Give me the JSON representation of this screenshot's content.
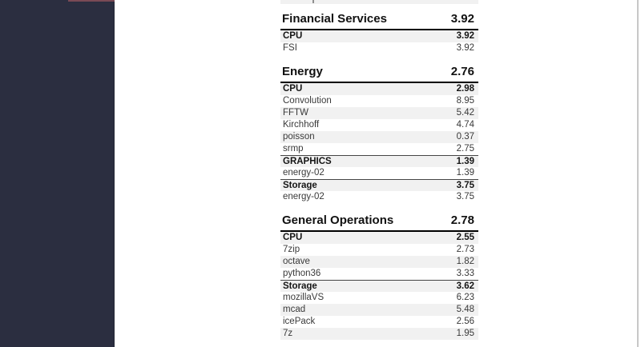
{
  "colors": {
    "sidebar_bg": "#2b2e40",
    "sidebar_accent": "#7a4a55",
    "row_shade": "#f1f1f1",
    "heading_rule": "#000000",
    "group_rule": "#454545",
    "page_edge": "#c7c7c7"
  },
  "report": {
    "top_cutoff_row": {
      "visible": true
    },
    "sections": [
      {
        "title": "Financial Services",
        "score": "3.92",
        "rows": [
          {
            "label": "CPU",
            "value": "3.92",
            "bold": true,
            "rule": false
          },
          {
            "label": "FSI",
            "value": "3.92",
            "bold": false,
            "rule": false
          }
        ]
      },
      {
        "title": "Energy",
        "score": "2.76",
        "rows": [
          {
            "label": "CPU",
            "value": "2.98",
            "bold": true,
            "rule": false
          },
          {
            "label": "Convolution",
            "value": "8.95",
            "bold": false,
            "rule": false
          },
          {
            "label": "FFTW",
            "value": "5.42",
            "bold": false,
            "rule": false
          },
          {
            "label": "Kirchhoff",
            "value": "4.74",
            "bold": false,
            "rule": false
          },
          {
            "label": "poisson",
            "value": "0.37",
            "bold": false,
            "rule": false
          },
          {
            "label": "srmp",
            "value": "2.75",
            "bold": false,
            "rule": false
          },
          {
            "label": "GRAPHICS",
            "value": "1.39",
            "bold": true,
            "rule": true
          },
          {
            "label": "energy-02",
            "value": "1.39",
            "bold": false,
            "rule": false
          },
          {
            "label": "Storage",
            "value": "3.75",
            "bold": true,
            "rule": true
          },
          {
            "label": "energy-02",
            "value": "3.75",
            "bold": false,
            "rule": false
          }
        ]
      },
      {
        "title": "General Operations",
        "score": "2.78",
        "rows": [
          {
            "label": "CPU",
            "value": "2.55",
            "bold": true,
            "rule": false
          },
          {
            "label": "7zip",
            "value": "2.73",
            "bold": false,
            "rule": false
          },
          {
            "label": "octave",
            "value": "1.82",
            "bold": false,
            "rule": false
          },
          {
            "label": "python36",
            "value": "3.33",
            "bold": false,
            "rule": false
          },
          {
            "label": "Storage",
            "value": "3.62",
            "bold": true,
            "rule": true
          },
          {
            "label": "mozillaVS",
            "value": "6.23",
            "bold": false,
            "rule": false
          },
          {
            "label": "mcad",
            "value": "5.48",
            "bold": false,
            "rule": false
          },
          {
            "label": "icePack",
            "value": "2.56",
            "bold": false,
            "rule": false
          },
          {
            "label": "7z",
            "value": "1.95",
            "bold": false,
            "rule": false
          }
        ]
      }
    ]
  }
}
